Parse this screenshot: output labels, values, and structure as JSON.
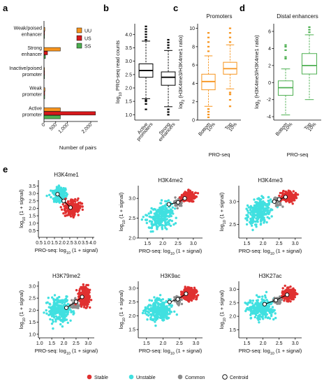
{
  "figure": {
    "panel_labels": [
      "a",
      "b",
      "c",
      "d",
      "e"
    ],
    "colors": {
      "uu": "#f7941d",
      "us": "#d7191c",
      "ss": "#4caf50",
      "stable": "#e03030",
      "unstable": "#40e0e0",
      "common": "#8c8c8c",
      "promoters": "#f7941d",
      "distal": "#4caf50",
      "box": "#000000"
    }
  },
  "chart_data": [
    {
      "panel": "a",
      "type": "bar",
      "orientation": "horizontal",
      "categories": [
        "Weak/poised enhancer",
        "Strong enhancer",
        "Inactive/poised promoter",
        "Weak promoter",
        "Active promoter"
      ],
      "category_lines": [
        [
          "Weak/poised",
          "enhancer"
        ],
        [
          "Strong",
          "enhancer"
        ],
        [
          "Inactive/poised",
          "promoter"
        ],
        [
          "Weak",
          "promoter"
        ],
        [
          "Active",
          "promoter"
        ]
      ],
      "series": [
        {
          "name": "UU",
          "values": [
            35,
            700,
            10,
            40,
            700
          ]
        },
        {
          "name": "US",
          "values": [
            25,
            150,
            10,
            30,
            2200
          ]
        },
        {
          "name": "SS",
          "values": [
            20,
            60,
            5,
            30,
            700
          ]
        }
      ],
      "xlabel": "Number of pairs",
      "xlim": [
        0,
        2300
      ],
      "xticks": [
        0,
        500,
        1000,
        2000
      ],
      "xtick_labels": [
        "0",
        "500",
        "1,000",
        "2,000"
      ],
      "legend": "top-right"
    },
    {
      "panel": "b",
      "type": "box",
      "categories": [
        "Active promoters",
        "Strong enhancers"
      ],
      "category_lines": [
        [
          "Active",
          "promoters"
        ],
        [
          "Strong",
          "enhancers"
        ]
      ],
      "boxes": [
        {
          "min": 1.6,
          "q1": 2.4,
          "median": 2.65,
          "q3": 2.9,
          "max": 3.75,
          "outliers_low": [
            1.2,
            1.4,
            1.5,
            1.55
          ],
          "outliers_high": [
            3.8,
            3.9,
            4.0,
            4.1,
            4.2,
            4.3
          ]
        },
        {
          "min": 1.3,
          "q1": 2.1,
          "median": 2.4,
          "q3": 2.6,
          "max": 3.4,
          "outliers_low": [
            1.0,
            1.1,
            1.2
          ],
          "outliers_high": [
            3.5,
            3.6,
            3.7,
            3.8
          ]
        }
      ],
      "ylabel": "log10 PRO-seq read counts",
      "ylim": [
        0.8,
        4.4
      ],
      "yticks": [
        1.0,
        1.5,
        2.0,
        2.5,
        3.0,
        3.5,
        4.0
      ],
      "ytick_labels": [
        "1.0",
        "1.5",
        "2.0",
        "2.5",
        "3.0",
        "3.5",
        "4.0"
      ]
    },
    {
      "panel": "c",
      "type": "box",
      "title": "Promoters",
      "categories": [
        "Bottom 10%",
        "Top 10%"
      ],
      "category_lines": [
        [
          "Bottom",
          "10%"
        ],
        [
          "Top",
          "10%"
        ]
      ],
      "boxes": [
        {
          "min": 1.5,
          "q1": 3.3,
          "median": 4.2,
          "q3": 5.0,
          "max": 7.0,
          "outliers_low": [
            0.3,
            0.6,
            0.9,
            1.2
          ],
          "outliers_high": [
            7.5,
            8.0,
            8.5,
            9.0,
            9.5
          ]
        },
        {
          "min": 3.4,
          "q1": 5.0,
          "median": 5.6,
          "q3": 6.3,
          "max": 8.2,
          "outliers_low": [
            1.5,
            2.2,
            2.8,
            3.0
          ],
          "outliers_high": [
            8.5,
            9.0,
            9.5,
            10.0
          ]
        }
      ],
      "xlabel": "PRO-seq",
      "ylabel": "log2 (H3K4me3/H3K4me1 ratio)",
      "ylim": [
        0,
        10.5
      ],
      "yticks": [
        0,
        2,
        4,
        6,
        8,
        10
      ],
      "ytick_labels": [
        "0",
        "2",
        "4",
        "6",
        "8",
        "10"
      ]
    },
    {
      "panel": "d",
      "type": "box",
      "title": "Distal enhancers",
      "categories": [
        "Bottom 10%",
        "Top 10%"
      ],
      "category_lines": [
        [
          "Bottom",
          "10%"
        ],
        [
          "Top",
          "10%"
        ]
      ],
      "boxes": [
        {
          "min": -3.8,
          "q1": -1.5,
          "median": -0.6,
          "q3": 0.2,
          "max": 1.6,
          "outliers_low": [],
          "outliers_high": [
            2.8,
            3.0,
            3.8,
            4.2,
            4.4
          ]
        },
        {
          "min": -2.0,
          "q1": 1.0,
          "median": 2.0,
          "q3": 3.4,
          "max": 5.6,
          "outliers_low": [],
          "outliers_high": [
            5.9,
            6.2,
            6.5
          ]
        }
      ],
      "xlabel": "PRO-seq",
      "ylabel": "log2 (H3K4me3/H3K4me1 ratio)",
      "ylim": [
        -4.4,
        6.9
      ],
      "yticks": [
        -4,
        -2,
        0,
        2,
        4,
        6
      ],
      "ytick_labels": [
        "-4",
        "-2",
        "0",
        "2",
        "4",
        "6"
      ]
    },
    {
      "panel": "e",
      "type": "scatter",
      "xlabel": "PRO-seq: log10 (1 + signal)",
      "ylabel": "log10 (1 + signal)",
      "legend": {
        "entries": [
          "Stable",
          "Unstable",
          "Common",
          "Centroid"
        ],
        "position": "bottom"
      },
      "plots": [
        {
          "title": "H3K4me1",
          "xlim": [
            0.45,
            4.1
          ],
          "ylim": [
            0.05,
            3.9
          ],
          "xticks": [
            0.5,
            1.0,
            1.5,
            2.0,
            2.5,
            3.0,
            3.5,
            4.0
          ],
          "xtick_labels": [
            "0.5",
            "1.0",
            "1.5",
            "2.0",
            "2.5",
            "3.0",
            "3.5",
            "4.0"
          ],
          "yticks": [
            0.5,
            1.0,
            1.5,
            2.0,
            2.5,
            3.0,
            3.5
          ],
          "ytick_labels": [
            "0.5",
            "1.0",
            "1.5",
            "2.0",
            "2.5",
            "3.0",
            "3.5"
          ],
          "clusters": {
            "unstable": {
              "center": [
                1.8,
                2.9
              ],
              "spread": [
                0.45,
                0.45
              ],
              "rot": -45
            },
            "stable": {
              "center": [
                2.7,
                2.0
              ],
              "spread": [
                0.5,
                0.55
              ],
              "rot": -40
            }
          },
          "centroids": [
            [
              1.7,
              2.95
            ],
            [
              2.1,
              2.5
            ],
            [
              2.55,
              2.05
            ]
          ]
        },
        {
          "title": "H3K4me2",
          "xlim": [
            1.2,
            3.3
          ],
          "ylim": [
            2.0,
            3.32
          ],
          "xticks": [
            1.5,
            2.0,
            2.5,
            3.0
          ],
          "xtick_labels": [
            "1.5",
            "2.0",
            "2.5",
            "3.0"
          ],
          "yticks": [
            2.0,
            2.5,
            3.0
          ],
          "ytick_labels": [
            "2.0",
            "2.5",
            "3.0"
          ],
          "clusters": {
            "unstable": {
              "center": [
                1.95,
                2.55
              ],
              "spread": [
                0.45,
                0.28
              ],
              "rot": 25
            },
            "common": {
              "center": [
                2.5,
                2.9
              ],
              "spread": [
                0.15,
                0.12
              ],
              "rot": 0
            },
            "stable": {
              "center": [
                2.85,
                3.05
              ],
              "spread": [
                0.22,
                0.12
              ],
              "rot": 0
            }
          },
          "centroids": [
            [
              2.2,
              2.85
            ],
            [
              2.5,
              2.9
            ],
            [
              2.72,
              3.0
            ]
          ]
        },
        {
          "title": "H3K4me3",
          "xlim": [
            1.25,
            3.2
          ],
          "ylim": [
            2.2,
            3.35
          ],
          "xticks": [
            1.5,
            2.0,
            2.5,
            3.0
          ],
          "xtick_labels": [
            "1.5",
            "2.0",
            "2.5",
            "3.0"
          ],
          "yticks": [
            2.5,
            3.0
          ],
          "ytick_labels": [
            "2.5",
            "3.0"
          ],
          "clusters": {
            "unstable": {
              "center": [
                1.9,
                2.8
              ],
              "spread": [
                0.4,
                0.25
              ],
              "rot": 25
            },
            "common": {
              "center": [
                2.45,
                3.0
              ],
              "spread": [
                0.12,
                0.1
              ],
              "rot": 0
            },
            "stable": {
              "center": [
                2.8,
                3.1
              ],
              "spread": [
                0.2,
                0.1
              ],
              "rot": 0
            }
          },
          "centroids": [
            [
              2.35,
              3.0
            ],
            [
              2.5,
              3.05
            ],
            [
              2.7,
              3.1
            ]
          ]
        },
        {
          "title": "H3K79me2",
          "xlim": [
            0.95,
            3.25
          ],
          "ylim": [
            0.85,
            3.2
          ],
          "xticks": [
            1.0,
            1.5,
            2.0,
            2.5,
            3.0
          ],
          "xtick_labels": [
            "1.0",
            "1.5",
            "2.0",
            "2.5",
            "3.0"
          ],
          "yticks": [
            1.0,
            1.5,
            2.0,
            2.5,
            3.0
          ],
          "ytick_labels": [
            "1.0",
            "1.5",
            "2.0",
            "2.5",
            "3.0"
          ],
          "clusters": {
            "unstable": {
              "center": [
                1.85,
                2.0
              ],
              "spread": [
                0.5,
                0.5
              ],
              "rot": 20
            },
            "common": {
              "center": [
                2.45,
                2.25
              ],
              "spread": [
                0.15,
                0.2
              ],
              "rot": 0
            },
            "stable": {
              "center": [
                2.85,
                2.55
              ],
              "spread": [
                0.25,
                0.4
              ],
              "rot": 0
            }
          },
          "centroids": [
            [
              2.1,
              2.1
            ],
            [
              2.5,
              2.35
            ],
            [
              2.75,
              2.55
            ]
          ]
        },
        {
          "title": "H3K9ac",
          "xlim": [
            1.25,
            3.2
          ],
          "ylim": [
            1.2,
            3.25
          ],
          "xticks": [
            1.5,
            2.0,
            2.5,
            3.0
          ],
          "xtick_labels": [
            "1.5",
            "2.0",
            "2.5",
            "3.0"
          ],
          "yticks": [
            1.5,
            2.0,
            2.5,
            3.0
          ],
          "ytick_labels": [
            "1.5",
            "2.0",
            "2.5",
            "3.0"
          ],
          "clusters": {
            "unstable": {
              "center": [
                1.9,
                2.2
              ],
              "spread": [
                0.4,
                0.4
              ],
              "rot": 35
            },
            "common": {
              "center": [
                2.45,
                2.55
              ],
              "spread": [
                0.12,
                0.15
              ],
              "rot": 0
            },
            "stable": {
              "center": [
                2.8,
                2.8
              ],
              "spread": [
                0.2,
                0.22
              ],
              "rot": 0
            }
          },
          "centroids": [
            [
              2.2,
              2.5
            ],
            [
              2.45,
              2.6
            ],
            [
              2.7,
              2.8
            ]
          ]
        },
        {
          "title": "H3K27ac",
          "xlim": [
            1.25,
            3.2
          ],
          "ylim": [
            1.2,
            3.3
          ],
          "xticks": [
            1.5,
            2.0,
            2.5,
            3.0
          ],
          "xtick_labels": [
            "1.5",
            "2.0",
            "2.5",
            "3.0"
          ],
          "yticks": [
            1.5,
            2.0,
            2.5,
            3.0
          ],
          "ytick_labels": [
            "1.5",
            "2.0",
            "2.5",
            "3.0"
          ],
          "clusters": {
            "unstable": {
              "center": [
                1.95,
                2.3
              ],
              "spread": [
                0.4,
                0.4
              ],
              "rot": 35
            },
            "common": {
              "center": [
                2.45,
                2.6
              ],
              "spread": [
                0.12,
                0.15
              ],
              "rot": 0
            },
            "stable": {
              "center": [
                2.8,
                2.8
              ],
              "spread": [
                0.2,
                0.22
              ],
              "rot": 0
            }
          },
          "centroids": [
            [
              2.05,
              2.45
            ],
            [
              2.4,
              2.6
            ],
            [
              2.75,
              2.8
            ]
          ]
        }
      ]
    }
  ]
}
